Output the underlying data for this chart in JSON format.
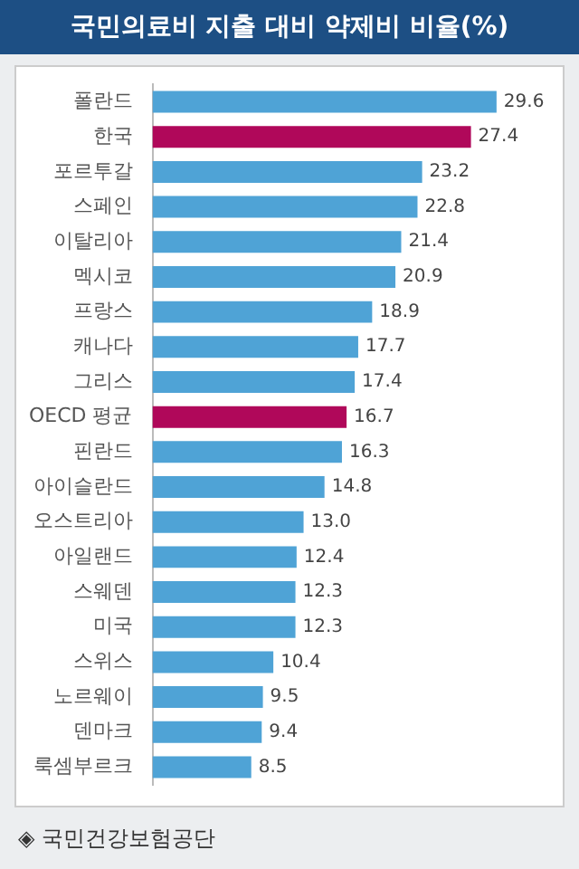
{
  "chart_data": {
    "type": "bar",
    "orientation": "horizontal",
    "title": "국민의료비 지출 대비 약제비 비율(%)",
    "categories": [
      "폴란드",
      "한국",
      "포르투갈",
      "스페인",
      "이탈리아",
      "멕시코",
      "프랑스",
      "캐나다",
      "그리스",
      "OECD 평균",
      "핀란드",
      "아이슬란드",
      "오스트리아",
      "아일랜드",
      "스웨덴",
      "미국",
      "스위스",
      "노르웨이",
      "덴마크",
      "룩셈부르크"
    ],
    "values": [
      29.6,
      27.4,
      23.2,
      22.8,
      21.4,
      20.9,
      18.9,
      17.7,
      17.4,
      16.7,
      16.3,
      14.8,
      13.0,
      12.4,
      12.3,
      12.3,
      10.4,
      9.5,
      9.4,
      8.5
    ],
    "value_labels": [
      "29.6",
      "27.4",
      "23.2",
      "22.8",
      "21.4",
      "20.9",
      "18.9",
      "17.7",
      "17.4",
      "16.7",
      "16.3",
      "14.8",
      "13.0",
      "12.4",
      "12.3",
      "12.3",
      "10.4",
      "9.5",
      "9.4",
      "8.5"
    ],
    "colors": [
      "#4fa3d6",
      "#b0085a",
      "#4fa3d6",
      "#4fa3d6",
      "#4fa3d6",
      "#4fa3d6",
      "#4fa3d6",
      "#4fa3d6",
      "#4fa3d6",
      "#b0085a",
      "#4fa3d6",
      "#4fa3d6",
      "#4fa3d6",
      "#4fa3d6",
      "#4fa3d6",
      "#4fa3d6",
      "#4fa3d6",
      "#4fa3d6",
      "#4fa3d6",
      "#4fa3d6"
    ],
    "annotations": [
      "◈ 국민건강보험공단"
    ]
  }
}
